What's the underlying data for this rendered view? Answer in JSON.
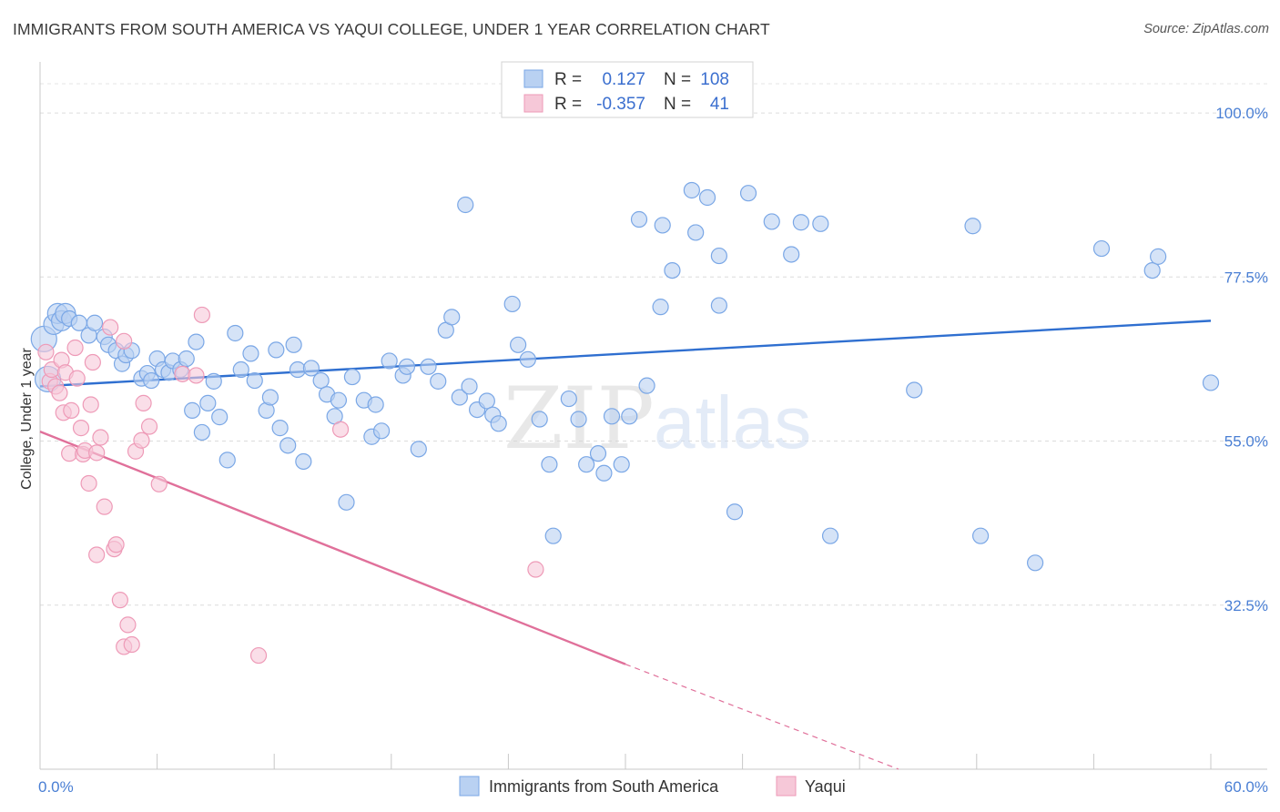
{
  "header": {
    "title": "IMMIGRANTS FROM SOUTH AMERICA VS YAQUI COLLEGE, UNDER 1 YEAR CORRELATION CHART",
    "source": "Source: ZipAtlas.com"
  },
  "watermark": {
    "zip": "ZIP",
    "atlas": "atlas"
  },
  "chart_data": {
    "type": "scatter",
    "title": "IMMIGRANTS FROM SOUTH AMERICA VS YAQUI COLLEGE, UNDER 1 YEAR CORRELATION CHART",
    "xlabel": "",
    "ylabel": "College, Under 1 year",
    "xlim": [
      0,
      60
    ],
    "ylim": [
      10,
      107
    ],
    "x_tick_labels": [
      "0.0%",
      "60.0%"
    ],
    "y_ticks": [
      32.5,
      55.0,
      77.5,
      100.0
    ],
    "y_tick_labels": [
      "32.5%",
      "55.0%",
      "77.5%",
      "100.0%"
    ],
    "grid": true,
    "legend_position": "top-center",
    "stats": [
      {
        "r_label": "R =",
        "r_value": "0.127",
        "n_label": "N =",
        "n_value": "108"
      },
      {
        "r_label": "R =",
        "r_value": "-0.357",
        "n_label": "N =",
        "n_value": "41"
      }
    ],
    "series": [
      {
        "name": "Immigrants from South America",
        "color": "#7aa7e6",
        "fill": "#b9d1f2",
        "line_color": "#2f6fd0",
        "trend": {
          "x": [
            0,
            60
          ],
          "y": [
            62.5,
            71.5
          ]
        },
        "points": [
          [
            0.2,
            69
          ],
          [
            0.4,
            63.5
          ],
          [
            0.7,
            71
          ],
          [
            0.9,
            72.5
          ],
          [
            1.1,
            71.5
          ],
          [
            1.3,
            72.5
          ],
          [
            1.5,
            71.8
          ],
          [
            2.0,
            71.2
          ],
          [
            2.5,
            69.5
          ],
          [
            2.8,
            71.2
          ],
          [
            3.3,
            69.3
          ],
          [
            3.5,
            68.2
          ],
          [
            3.9,
            67.4
          ],
          [
            4.2,
            65.6
          ],
          [
            4.4,
            66.8
          ],
          [
            4.7,
            67.4
          ],
          [
            5.2,
            63.6
          ],
          [
            5.5,
            64.3
          ],
          [
            5.7,
            63.3
          ],
          [
            6.0,
            66.3
          ],
          [
            6.3,
            64.8
          ],
          [
            6.6,
            64.4
          ],
          [
            6.8,
            66.0
          ],
          [
            7.2,
            64.8
          ],
          [
            7.5,
            66.3
          ],
          [
            7.8,
            59.2
          ],
          [
            8.0,
            68.6
          ],
          [
            8.3,
            56.2
          ],
          [
            8.6,
            60.2
          ],
          [
            8.9,
            63.2
          ],
          [
            9.2,
            58.3
          ],
          [
            9.6,
            52.4
          ],
          [
            10.0,
            69.8
          ],
          [
            10.3,
            64.8
          ],
          [
            10.8,
            67.0
          ],
          [
            11.0,
            63.3
          ],
          [
            11.6,
            59.2
          ],
          [
            11.8,
            61.0
          ],
          [
            12.1,
            67.5
          ],
          [
            12.3,
            56.8
          ],
          [
            12.7,
            54.4
          ],
          [
            13.0,
            68.2
          ],
          [
            13.2,
            64.8
          ],
          [
            13.5,
            52.2
          ],
          [
            13.9,
            65.0
          ],
          [
            14.4,
            63.3
          ],
          [
            14.7,
            61.4
          ],
          [
            15.1,
            58.4
          ],
          [
            15.3,
            60.6
          ],
          [
            15.7,
            46.6
          ],
          [
            16.0,
            63.8
          ],
          [
            16.6,
            60.6
          ],
          [
            17.0,
            55.6
          ],
          [
            17.2,
            60.0
          ],
          [
            17.5,
            56.4
          ],
          [
            17.9,
            66.0
          ],
          [
            18.6,
            64.0
          ],
          [
            18.8,
            65.2
          ],
          [
            19.4,
            53.9
          ],
          [
            19.9,
            65.2
          ],
          [
            20.4,
            63.2
          ],
          [
            20.8,
            70.2
          ],
          [
            21.1,
            72.0
          ],
          [
            21.5,
            61.0
          ],
          [
            21.8,
            87.4
          ],
          [
            22.0,
            62.5
          ],
          [
            22.4,
            59.3
          ],
          [
            22.9,
            60.5
          ],
          [
            23.2,
            58.6
          ],
          [
            23.5,
            57.4
          ],
          [
            24.2,
            73.8
          ],
          [
            24.5,
            68.2
          ],
          [
            25.0,
            66.2
          ],
          [
            25.6,
            58.0
          ],
          [
            26.1,
            51.8
          ],
          [
            26.3,
            42.0
          ],
          [
            27.1,
            60.8
          ],
          [
            27.6,
            58.0
          ],
          [
            28.0,
            51.8
          ],
          [
            28.6,
            53.3
          ],
          [
            28.9,
            50.6
          ],
          [
            29.3,
            58.4
          ],
          [
            29.8,
            51.8
          ],
          [
            30.2,
            58.4
          ],
          [
            30.7,
            85.4
          ],
          [
            31.1,
            62.6
          ],
          [
            31.8,
            73.4
          ],
          [
            31.9,
            84.6
          ],
          [
            32.4,
            78.4
          ],
          [
            33.4,
            89.4
          ],
          [
            33.6,
            83.6
          ],
          [
            34.2,
            88.4
          ],
          [
            34.8,
            73.6
          ],
          [
            34.8,
            80.4
          ],
          [
            35.6,
            45.3
          ],
          [
            36.3,
            89.0
          ],
          [
            37.5,
            85.1
          ],
          [
            38.5,
            80.6
          ],
          [
            39.0,
            85.0
          ],
          [
            40.0,
            84.8
          ],
          [
            40.5,
            42.0
          ],
          [
            44.8,
            62.0
          ],
          [
            47.8,
            84.5
          ],
          [
            48.2,
            42.0
          ],
          [
            51.0,
            38.3
          ],
          [
            54.4,
            81.4
          ],
          [
            57.0,
            78.4
          ],
          [
            57.3,
            80.3
          ],
          [
            60.0,
            63.0
          ],
          [
            29.8,
            104.0
          ]
        ]
      },
      {
        "name": "Yaqui",
        "color": "#ee9ab7",
        "fill": "#f6c8d8",
        "line_color": "#e0709a",
        "trend": {
          "x": [
            0,
            30
          ],
          "y": [
            56.3,
            24.4
          ]
        },
        "trend_dashed": {
          "x": [
            30,
            44
          ],
          "y": [
            24.4,
            10
          ]
        },
        "points": [
          [
            0.3,
            67.2
          ],
          [
            0.5,
            63.2
          ],
          [
            0.6,
            64.8
          ],
          [
            0.8,
            62.5
          ],
          [
            1.0,
            61.6
          ],
          [
            1.1,
            66.1
          ],
          [
            1.2,
            58.9
          ],
          [
            1.3,
            64.4
          ],
          [
            1.5,
            53.3
          ],
          [
            1.6,
            59.2
          ],
          [
            1.8,
            67.8
          ],
          [
            1.9,
            63.6
          ],
          [
            2.1,
            56.8
          ],
          [
            2.2,
            53.2
          ],
          [
            2.3,
            53.7
          ],
          [
            2.5,
            49.2
          ],
          [
            2.6,
            60.0
          ],
          [
            2.7,
            65.8
          ],
          [
            2.9,
            39.4
          ],
          [
            2.9,
            53.4
          ],
          [
            3.1,
            55.5
          ],
          [
            3.3,
            46.0
          ],
          [
            3.6,
            70.6
          ],
          [
            3.8,
            40.2
          ],
          [
            3.9,
            40.8
          ],
          [
            4.1,
            33.2
          ],
          [
            4.3,
            68.7
          ],
          [
            4.3,
            26.8
          ],
          [
            4.5,
            29.8
          ],
          [
            4.7,
            27.1
          ],
          [
            4.9,
            53.6
          ],
          [
            5.2,
            55.1
          ],
          [
            5.3,
            60.2
          ],
          [
            5.6,
            57.0
          ],
          [
            6.1,
            49.1
          ],
          [
            7.3,
            64.2
          ],
          [
            8.0,
            64.0
          ],
          [
            8.3,
            72.3
          ],
          [
            11.2,
            25.6
          ],
          [
            15.4,
            56.6
          ],
          [
            25.4,
            37.4
          ]
        ]
      }
    ]
  }
}
